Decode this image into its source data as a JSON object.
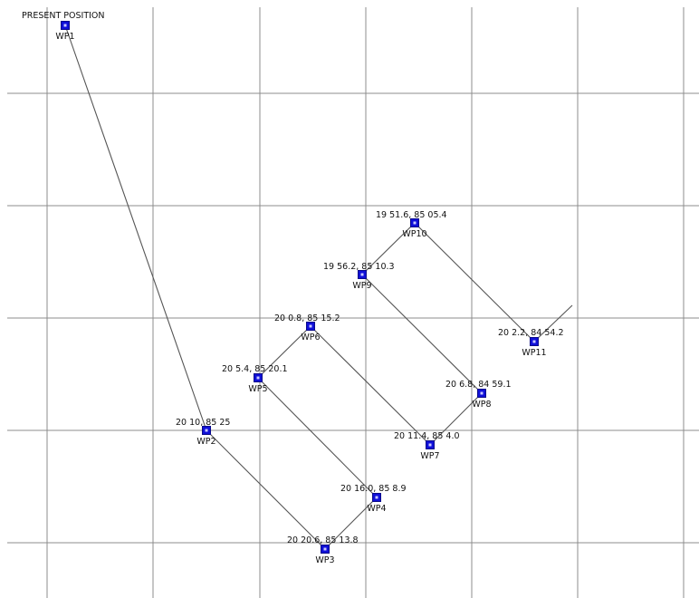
{
  "present_position_label": "PRESENT POSITION",
  "waypoints": [
    {
      "id": "WP1",
      "coord": ""
    },
    {
      "id": "WP2",
      "coord": "20 10, 85 25"
    },
    {
      "id": "WP3",
      "coord": "20 20.6, 85 13.8"
    },
    {
      "id": "WP4",
      "coord": "20 16.0, 85 8.9"
    },
    {
      "id": "WP5",
      "coord": "20 5.4, 85 20.1"
    },
    {
      "id": "WP6",
      "coord": "20 0.8, 85 15.2"
    },
    {
      "id": "WP7",
      "coord": "20 11.4, 85 4.0"
    },
    {
      "id": "WP8",
      "coord": "20 6.8, 84 59.1"
    },
    {
      "id": "WP9",
      "coord": "19 56.2, 85 10.3"
    },
    {
      "id": "WP10",
      "coord": "19 51.6, 85 05.4"
    },
    {
      "id": "WP11",
      "coord": "20 2.2, 84 54.2"
    }
  ],
  "route": [
    "WP1",
    "WP2",
    "WP3",
    "WP4",
    "WP5",
    "WP6",
    "WP7",
    "WP8",
    "WP9",
    "WP10",
    "WP11"
  ]
}
